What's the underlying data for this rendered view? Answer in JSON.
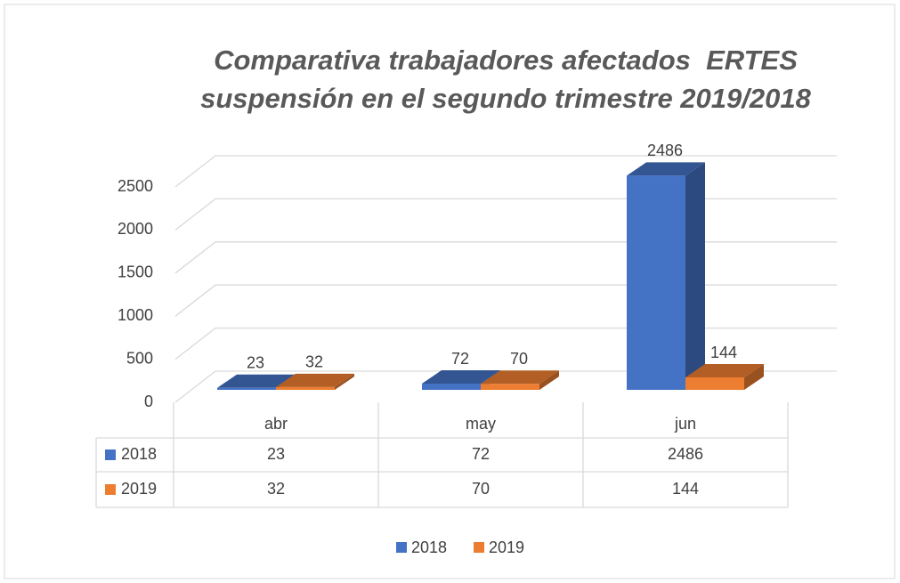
{
  "chart_data": {
    "type": "bar3d",
    "title": [
      "Comparativa trabajadores afectados  ERTES",
      "suspensión en el segundo trimestre 2019/2018"
    ],
    "categories": [
      "abr",
      "may",
      "jun"
    ],
    "series": [
      {
        "name": "2018",
        "color": "#4472c4",
        "values": [
          23,
          72,
          2486
        ]
      },
      {
        "name": "2019",
        "color": "#ed7d31",
        "values": [
          32,
          70,
          144
        ]
      }
    ],
    "ylim": [
      0,
      2500
    ],
    "yticks": [
      0,
      500,
      1000,
      1500,
      2000,
      2500
    ],
    "grid": true,
    "data_table": true,
    "legend": "bottom"
  }
}
